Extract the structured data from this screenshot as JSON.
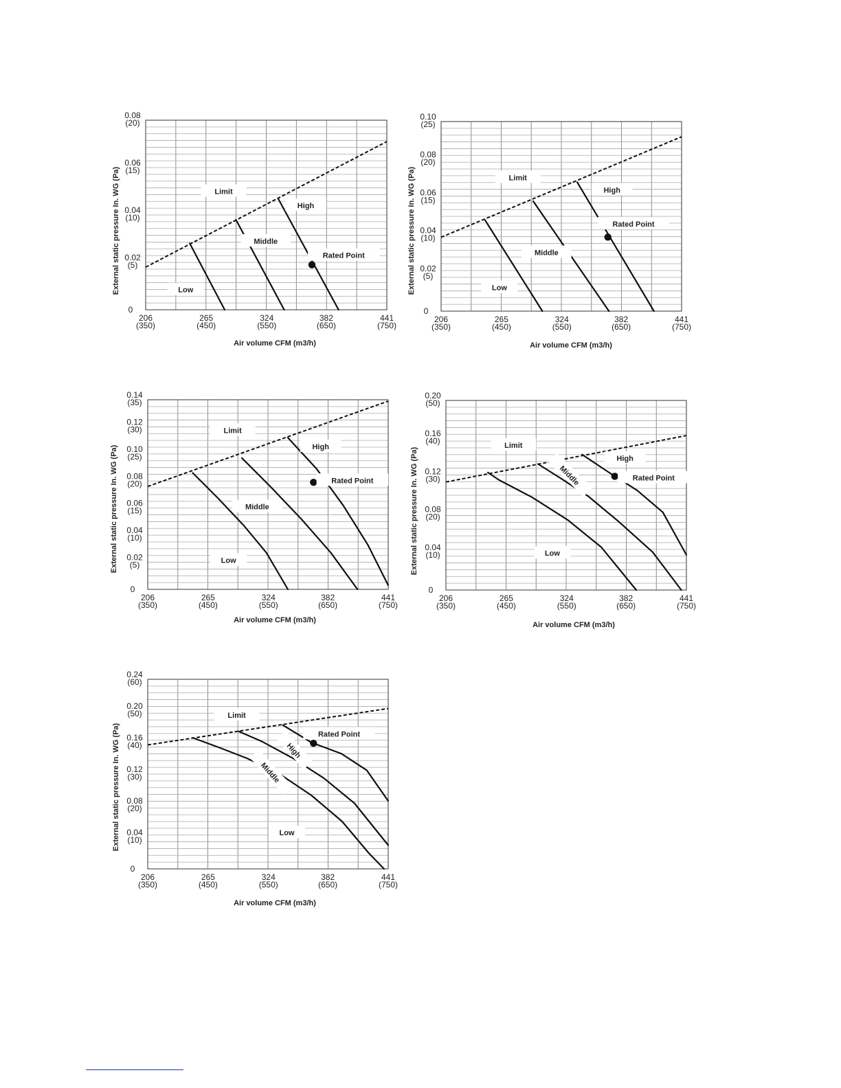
{
  "chart_data": [
    {
      "type": "line",
      "xlabel": "Air volume CFM (m3/h)",
      "ylabel": "External static pressure In. WG (Pa)",
      "x_ticks": [
        {
          "top": "206",
          "bottom": "(350)",
          "value": 206
        },
        {
          "top": "265",
          "bottom": "(450)",
          "value": 265
        },
        {
          "top": "324",
          "bottom": "(550)",
          "value": 324
        },
        {
          "top": "382",
          "bottom": "(650)",
          "value": 382
        },
        {
          "top": "441",
          "bottom": "(750)",
          "value": 441
        }
      ],
      "y_ticks": [
        {
          "top": "0",
          "bottom": "",
          "value": 0
        },
        {
          "top": "0.02",
          "bottom": "(5)",
          "value": 0.02
        },
        {
          "top": "0.04",
          "bottom": "(10)",
          "value": 0.04
        },
        {
          "top": "0.06",
          "bottom": "(15)",
          "value": 0.06
        },
        {
          "top": "0.08",
          "bottom": "(20)",
          "value": 0.08
        }
      ],
      "xlim": [
        206,
        441
      ],
      "ylim": [
        0,
        0.08
      ],
      "grid": true,
      "series": [
        {
          "name": "Limit",
          "style": "dashed",
          "points": [
            [
              206,
              0.018
            ],
            [
              441,
              0.071
            ]
          ]
        },
        {
          "name": "Low",
          "style": "solid",
          "points": [
            [
              249,
              0.028
            ],
            [
              283,
              0
            ]
          ]
        },
        {
          "name": "Middle",
          "style": "solid",
          "points": [
            [
              294,
              0.038
            ],
            [
              341,
              0
            ]
          ]
        },
        {
          "name": "High",
          "style": "solid",
          "points": [
            [
              335,
              0.047
            ],
            [
              394,
              0
            ]
          ]
        }
      ],
      "rated_point": {
        "label": "Rated Point",
        "x": 368,
        "y": 0.019
      },
      "labels": [
        {
          "text": "Limit",
          "x": 282,
          "y": 0.05
        },
        {
          "text": "Low",
          "x": 245,
          "y": 0.0085
        },
        {
          "text": "Middle",
          "x": 323,
          "y": 0.029
        },
        {
          "text": "High",
          "x": 362,
          "y": 0.044
        },
        {
          "text": "Rated Point",
          "x": 399,
          "y": 0.023
        }
      ]
    },
    {
      "type": "line",
      "xlabel": "Air volume CFM (m3/h)",
      "ylabel": "External static pressure In. WG (Pa)",
      "x_ticks": [
        {
          "top": "206",
          "bottom": "(350)",
          "value": 206
        },
        {
          "top": "265",
          "bottom": "(450)",
          "value": 265
        },
        {
          "top": "324",
          "bottom": "(550)",
          "value": 324
        },
        {
          "top": "382",
          "bottom": "(650)",
          "value": 382
        },
        {
          "top": "441",
          "bottom": "(750)",
          "value": 441
        }
      ],
      "y_ticks": [
        {
          "top": "0",
          "bottom": "",
          "value": 0
        },
        {
          "top": "0.02",
          "bottom": "(5)",
          "value": 0.02
        },
        {
          "top": "0.04",
          "bottom": "(10)",
          "value": 0.04
        },
        {
          "top": "0.06",
          "bottom": "(15)",
          "value": 0.06
        },
        {
          "top": "0.08",
          "bottom": "(20)",
          "value": 0.08
        },
        {
          "top": "0.10",
          "bottom": "(25)",
          "value": 0.1
        }
      ],
      "xlim": [
        206,
        441
      ],
      "ylim": [
        0,
        0.1
      ],
      "grid": true,
      "series": [
        {
          "name": "Limit",
          "style": "dashed",
          "points": [
            [
              206,
              0.039
            ],
            [
              441,
              0.092
            ]
          ]
        },
        {
          "name": "Low",
          "style": "solid",
          "points": [
            [
              249,
              0.048
            ],
            [
              305,
              0
            ]
          ]
        },
        {
          "name": "Middle",
          "style": "solid",
          "points": [
            [
              296,
              0.058
            ],
            [
              370,
              0
            ]
          ]
        },
        {
          "name": "High",
          "style": "solid",
          "points": [
            [
              339,
              0.068
            ],
            [
              414,
              0
            ]
          ]
        }
      ],
      "rated_point": {
        "label": "Rated Point",
        "x": 369,
        "y": 0.039
      },
      "labels": [
        {
          "text": "Limit",
          "x": 281,
          "y": 0.0705
        },
        {
          "text": "Low",
          "x": 263,
          "y": 0.0125
        },
        {
          "text": "Middle",
          "x": 309,
          "y": 0.031
        },
        {
          "text": "High",
          "x": 373,
          "y": 0.064
        },
        {
          "text": "Rated Point",
          "x": 394,
          "y": 0.046
        }
      ]
    },
    {
      "type": "line",
      "xlabel": "Air volume CFM (m3/h)",
      "ylabel": "External static pressure In. WG (Pa)",
      "x_ticks": [
        {
          "top": "206",
          "bottom": "(350)",
          "value": 206
        },
        {
          "top": "265",
          "bottom": "(450)",
          "value": 265
        },
        {
          "top": "324",
          "bottom": "(550)",
          "value": 324
        },
        {
          "top": "382",
          "bottom": "(650)",
          "value": 382
        },
        {
          "top": "441",
          "bottom": "(750)",
          "value": 441
        }
      ],
      "y_ticks": [
        {
          "top": "0",
          "bottom": "",
          "value": 0
        },
        {
          "top": "0.02",
          "bottom": "(5)",
          "value": 0.02
        },
        {
          "top": "0.04",
          "bottom": "(10)",
          "value": 0.04
        },
        {
          "top": "0.06",
          "bottom": "(15)",
          "value": 0.06
        },
        {
          "top": "0.08",
          "bottom": "(20)",
          "value": 0.08
        },
        {
          "top": "0.10",
          "bottom": "(25)",
          "value": 0.1
        },
        {
          "top": "0.12",
          "bottom": "(30)",
          "value": 0.12
        },
        {
          "top": "0.14",
          "bottom": "(35)",
          "value": 0.14
        }
      ],
      "xlim": [
        206,
        441
      ],
      "ylim": [
        0,
        0.14
      ],
      "grid": true,
      "series": [
        {
          "name": "Limit",
          "style": "dashed",
          "points": [
            [
              206,
              0.076
            ],
            [
              441,
              0.139
            ]
          ]
        },
        {
          "name": "Low",
          "style": "solid",
          "points": [
            [
              250,
              0.086
            ],
            [
              275,
              0.067
            ],
            [
              300,
              0.047
            ],
            [
              322,
              0.027
            ],
            [
              343,
              0
            ]
          ]
        },
        {
          "name": "Middle",
          "style": "solid",
          "points": [
            [
              298,
              0.097
            ],
            [
              327,
              0.075
            ],
            [
              356,
              0.052
            ],
            [
              385,
              0.027
            ],
            [
              411,
              0
            ]
          ]
        },
        {
          "name": "High",
          "style": "solid",
          "points": [
            [
              343,
              0.112
            ],
            [
              371,
              0.089
            ],
            [
              397,
              0.062
            ],
            [
              421,
              0.033
            ],
            [
              441,
              0.003
            ]
          ]
        }
      ],
      "rated_point": {
        "label": "Rated Point",
        "x": 368,
        "y": 0.079
      },
      "labels": [
        {
          "text": "Limit",
          "x": 289,
          "y": 0.1175
        },
        {
          "text": "Low",
          "x": 285,
          "y": 0.0215
        },
        {
          "text": "Middle",
          "x": 313,
          "y": 0.061
        },
        {
          "text": "High",
          "x": 375,
          "y": 0.1055
        },
        {
          "text": "Rated Point",
          "x": 406,
          "y": 0.0805
        }
      ]
    },
    {
      "type": "line",
      "xlabel": "Air volume CFM (m3/h)",
      "ylabel": "External static pressure In. WG (Pa)",
      "x_ticks": [
        {
          "top": "206",
          "bottom": "(350)",
          "value": 206
        },
        {
          "top": "265",
          "bottom": "(450)",
          "value": 265
        },
        {
          "top": "324",
          "bottom": "(550)",
          "value": 324
        },
        {
          "top": "382",
          "bottom": "(650)",
          "value": 382
        },
        {
          "top": "441",
          "bottom": "(750)",
          "value": 441
        }
      ],
      "y_ticks": [
        {
          "top": "0",
          "bottom": "",
          "value": 0
        },
        {
          "top": "0.04",
          "bottom": "(10)",
          "value": 0.04
        },
        {
          "top": "0.08",
          "bottom": "(20)",
          "value": 0.08
        },
        {
          "top": "0.12",
          "bottom": "(30)",
          "value": 0.12
        },
        {
          "top": "0.16",
          "bottom": "(40)",
          "value": 0.16
        },
        {
          "top": "0.20",
          "bottom": "(50)",
          "value": 0.2
        }
      ],
      "xlim": [
        206,
        441
      ],
      "ylim": [
        0,
        0.2
      ],
      "grid": true,
      "series": [
        {
          "name": "Limit",
          "style": "dashed",
          "points": [
            [
              206,
              0.114
            ],
            [
              441,
              0.163
            ]
          ]
        },
        {
          "name": "Low",
          "style": "solid",
          "points": [
            [
              247,
              0.124
            ],
            [
              258,
              0.116
            ],
            [
              290,
              0.098
            ],
            [
              325,
              0.074
            ],
            [
              358,
              0.045
            ],
            [
              392,
              0
            ]
          ]
        },
        {
          "name": "Middle",
          "style": "solid",
          "points": [
            [
              296,
              0.133
            ],
            [
              318,
              0.118
            ],
            [
              345,
              0.099
            ],
            [
              375,
              0.072
            ],
            [
              408,
              0.04
            ],
            [
              436,
              0
            ]
          ]
        },
        {
          "name": "High",
          "style": "solid",
          "points": [
            [
              339,
              0.143
            ],
            [
              364,
              0.125
            ],
            [
              393,
              0.105
            ],
            [
              418,
              0.082
            ],
            [
              441,
              0.037
            ]
          ]
        }
      ],
      "rated_point": {
        "label": "Rated Point",
        "x": 371,
        "y": 0.12
      },
      "labels": [
        {
          "text": "Limit",
          "x": 272,
          "y": 0.153
        },
        {
          "text": "Low",
          "x": 310,
          "y": 0.039
        },
        {
          "text": "Middle",
          "x": 327,
          "y": 0.121,
          "rotate": 45
        },
        {
          "text": "High",
          "x": 381,
          "y": 0.139
        },
        {
          "text": "Rated Point",
          "x": 409,
          "y": 0.1185
        }
      ]
    },
    {
      "type": "line",
      "xlabel": "Air volume CFM (m3/h)",
      "ylabel": "External static pressure In. WG (Pa)",
      "x_ticks": [
        {
          "top": "206",
          "bottom": "(350)",
          "value": 206
        },
        {
          "top": "265",
          "bottom": "(450)",
          "value": 265
        },
        {
          "top": "324",
          "bottom": "(550)",
          "value": 324
        },
        {
          "top": "382",
          "bottom": "(650)",
          "value": 382
        },
        {
          "top": "441",
          "bottom": "(750)",
          "value": 441
        }
      ],
      "y_ticks": [
        {
          "top": "0",
          "bottom": "",
          "value": 0
        },
        {
          "top": "0.04",
          "bottom": "(10)",
          "value": 0.04
        },
        {
          "top": "0.08",
          "bottom": "(20)",
          "value": 0.08
        },
        {
          "top": "0.12",
          "bottom": "(30)",
          "value": 0.12
        },
        {
          "top": "0.16",
          "bottom": "(40)",
          "value": 0.16
        },
        {
          "top": "0.20",
          "bottom": "(50)",
          "value": 0.2
        },
        {
          "top": "0.24",
          "bottom": "(60)",
          "value": 0.24
        }
      ],
      "xlim": [
        206,
        441
      ],
      "ylim": [
        0,
        0.24
      ],
      "grid": true,
      "series": [
        {
          "name": "Limit",
          "style": "dashed",
          "points": [
            [
              206,
              0.157
            ],
            [
              441,
              0.203
            ]
          ]
        },
        {
          "name": "Low",
          "style": "solid",
          "points": [
            [
              250,
              0.166
            ],
            [
              275,
              0.154
            ],
            [
              303,
              0.14
            ],
            [
              335,
              0.12
            ],
            [
              366,
              0.093
            ],
            [
              396,
              0.06
            ],
            [
              422,
              0.02
            ],
            [
              437,
              0
            ]
          ]
        },
        {
          "name": "Middle",
          "style": "solid",
          "points": [
            [
              295,
              0.174
            ],
            [
              318,
              0.161
            ],
            [
              348,
              0.14
            ],
            [
              378,
              0.115
            ],
            [
              408,
              0.083
            ],
            [
              441,
              0.03
            ]
          ]
        },
        {
          "name": "High",
          "style": "solid",
          "points": [
            [
              338,
              0.182
            ],
            [
              366,
              0.16
            ],
            [
              395,
              0.146
            ],
            [
              420,
              0.125
            ],
            [
              441,
              0.086
            ]
          ]
        }
      ],
      "rated_point": {
        "label": "Rated Point",
        "x": 368,
        "y": 0.159
      },
      "labels": [
        {
          "text": "Limit",
          "x": 293,
          "y": 0.195
        },
        {
          "text": "Low",
          "x": 342,
          "y": 0.046
        },
        {
          "text": "Middle",
          "x": 326,
          "y": 0.122,
          "rotate": 48
        },
        {
          "text": "High",
          "x": 349,
          "y": 0.15,
          "rotate": 48
        },
        {
          "text": "Rated Point",
          "x": 393,
          "y": 0.171
        }
      ]
    }
  ]
}
